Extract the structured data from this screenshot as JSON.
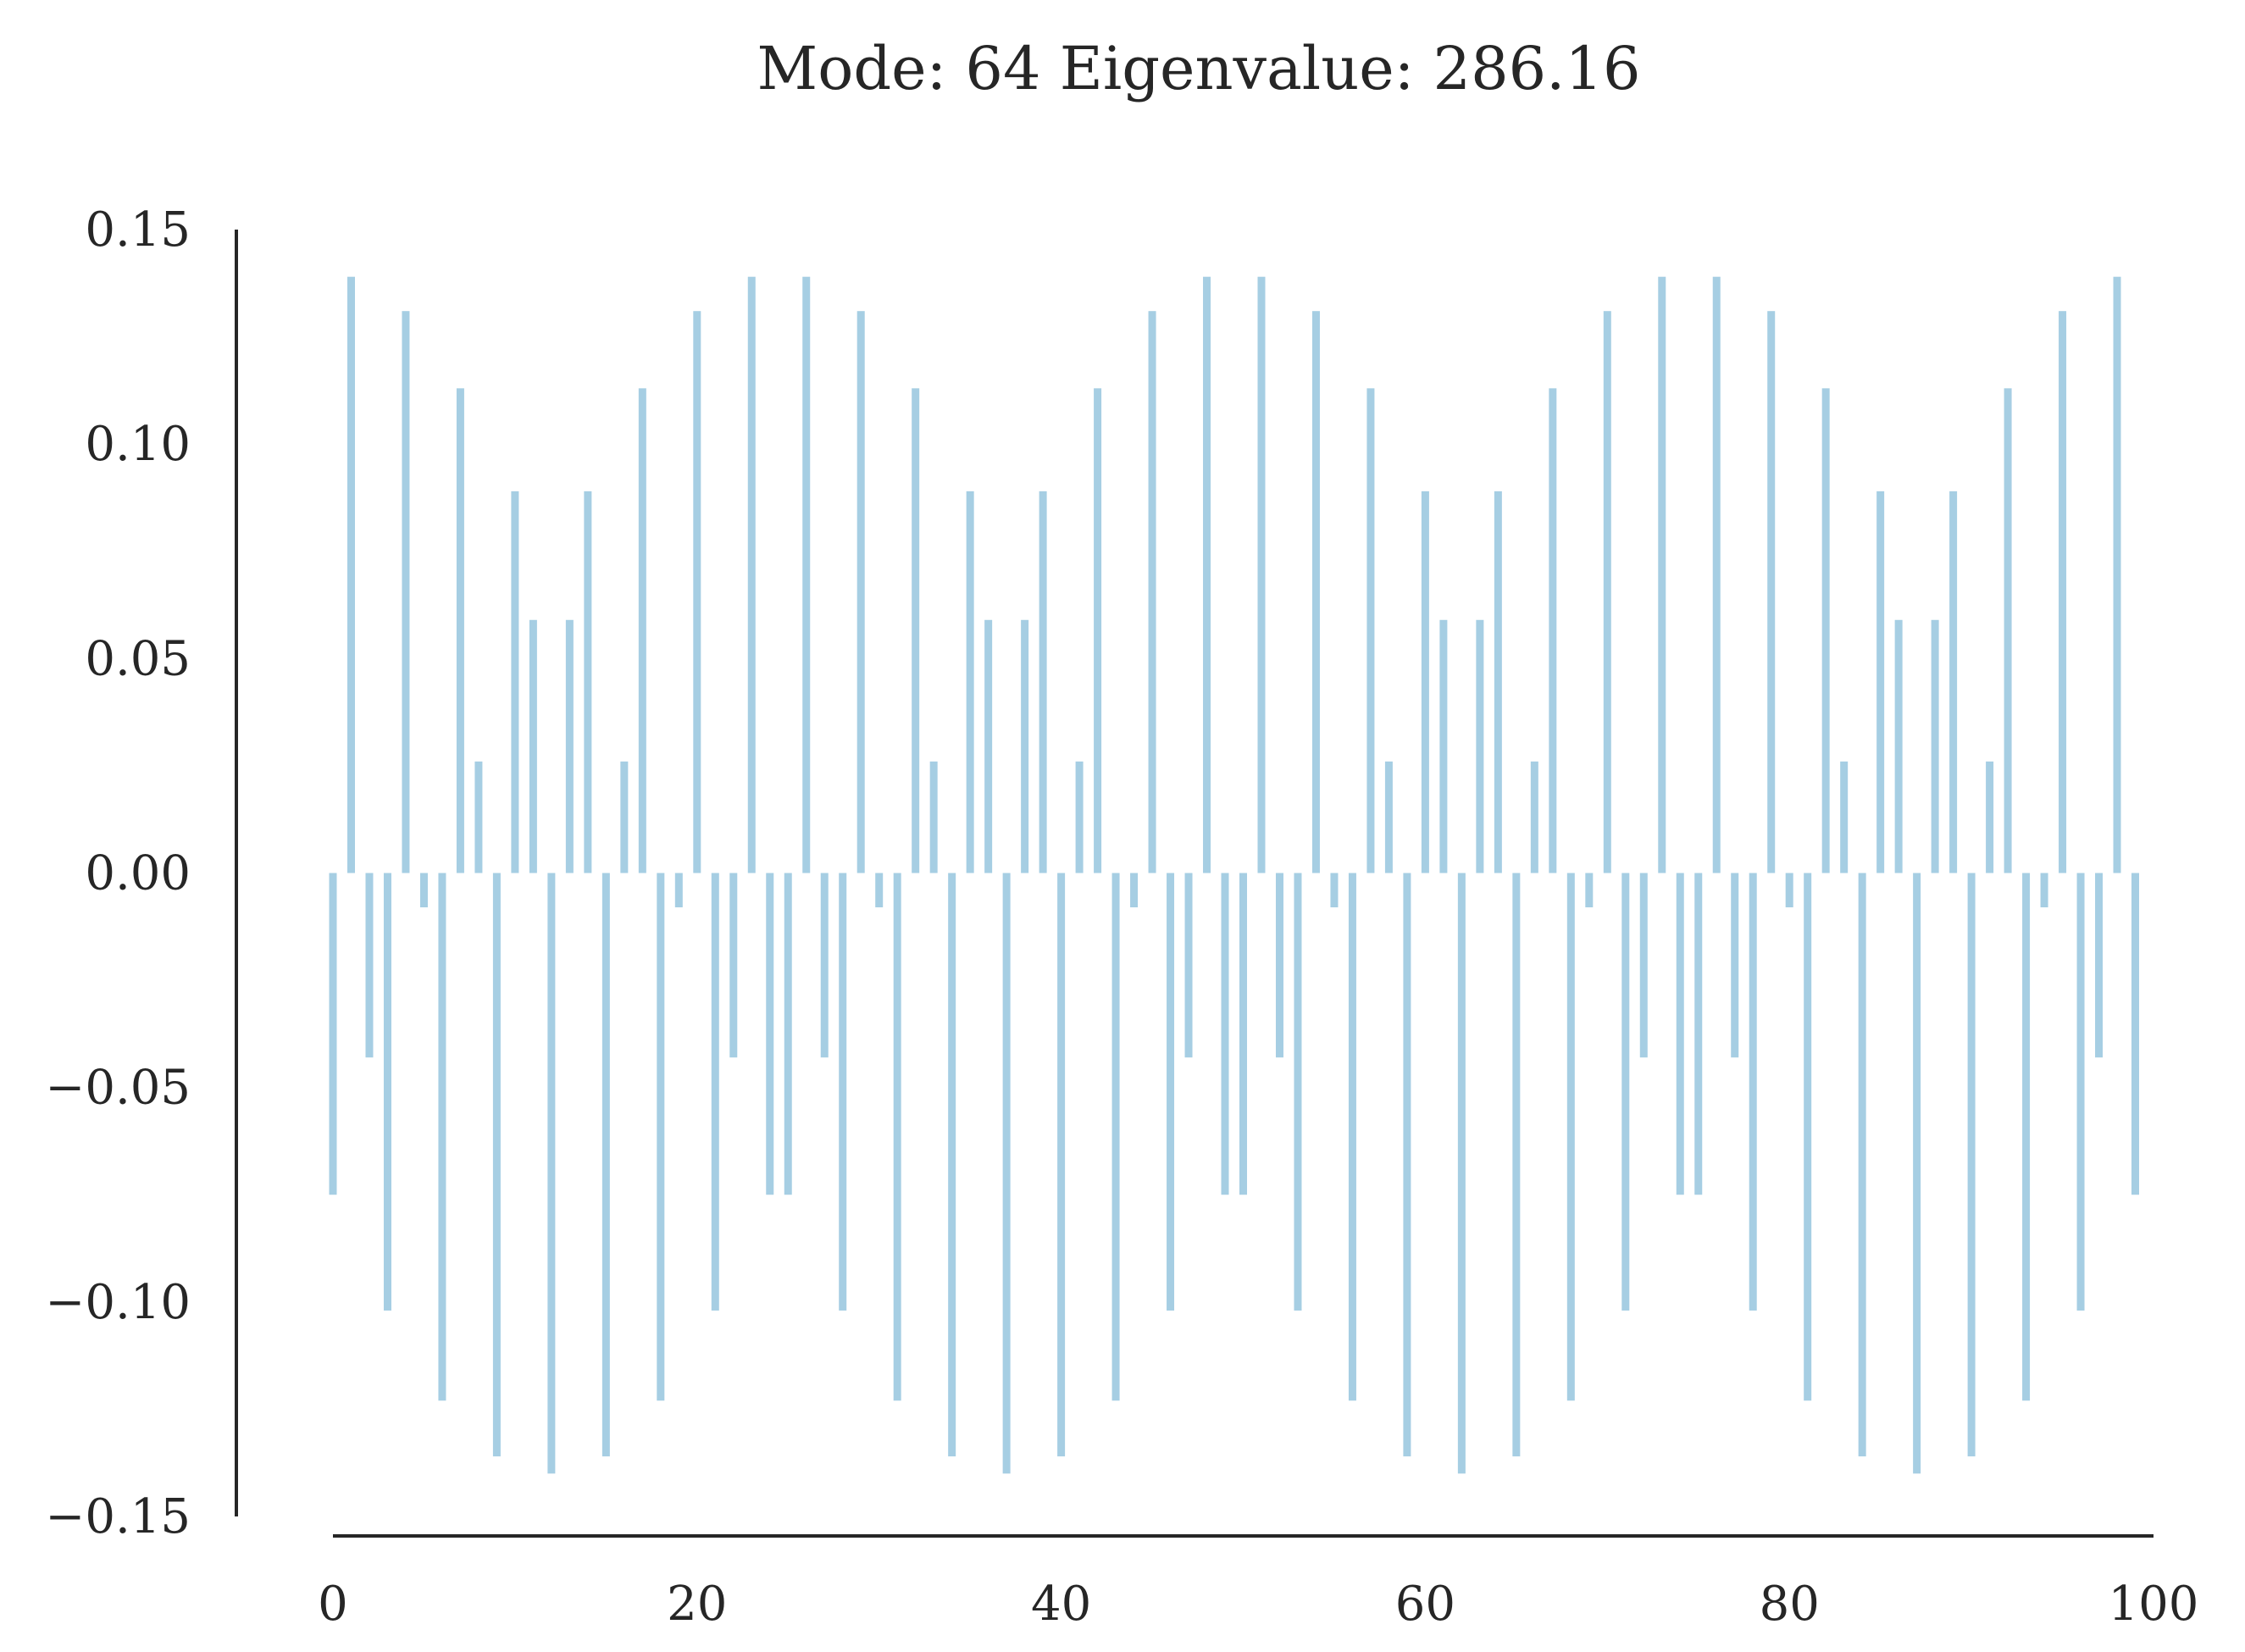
{
  "chart_data": {
    "type": "bar",
    "title": "Mode: 64 Eigenvalue: 286.16",
    "xlabel": "",
    "ylabel": "",
    "xlim": [
      0,
      100
    ],
    "ylim": [
      -0.15,
      0.15
    ],
    "x_ticks": [
      0,
      20,
      40,
      60,
      80,
      100
    ],
    "x_tick_labels": [
      "0",
      "20",
      "40",
      "60",
      "80",
      "100"
    ],
    "y_ticks": [
      0.15,
      0.1,
      0.05,
      0.0,
      -0.05,
      -0.1,
      -0.15
    ],
    "y_tick_labels": [
      "0.15",
      "0.10",
      "0.05",
      "0.00",
      "−0.05",
      "−0.10",
      "−0.15"
    ],
    "bar_color": "#a6cee3",
    "grid": false,
    "legend": "none",
    "x": [
      0,
      1,
      2,
      3,
      4,
      5,
      6,
      7,
      8,
      9,
      10,
      11,
      12,
      13,
      14,
      15,
      16,
      17,
      18,
      19,
      20,
      21,
      22,
      23,
      24,
      25,
      26,
      27,
      28,
      29,
      30,
      31,
      32,
      33,
      34,
      35,
      36,
      37,
      38,
      39,
      40,
      41,
      42,
      43,
      44,
      45,
      46,
      47,
      48,
      49,
      50,
      51,
      52,
      53,
      54,
      55,
      56,
      57,
      58,
      59,
      60,
      61,
      62,
      63,
      64,
      65,
      66,
      67,
      68,
      69,
      70,
      71,
      72,
      73,
      74,
      75,
      76,
      77,
      78,
      79,
      80,
      81,
      82,
      83,
      84,
      85,
      86,
      87,
      88,
      89,
      90,
      91,
      92,
      93,
      94,
      95,
      96,
      97,
      98,
      99
    ],
    "values": [
      -0.075,
      0.139,
      -0.043,
      -0.102,
      0.131,
      -0.008,
      -0.123,
      0.113,
      0.026,
      -0.136,
      0.089,
      0.059,
      -0.14,
      0.059,
      0.089,
      -0.136,
      0.026,
      0.113,
      -0.123,
      -0.008,
      0.131,
      -0.102,
      -0.043,
      0.139,
      -0.075,
      -0.075,
      0.139,
      -0.043,
      -0.102,
      0.131,
      -0.008,
      -0.123,
      0.113,
      0.026,
      -0.136,
      0.089,
      0.059,
      -0.14,
      0.059,
      0.089,
      -0.136,
      0.026,
      0.113,
      -0.123,
      -0.008,
      0.131,
      -0.102,
      -0.043,
      0.139,
      -0.075,
      -0.075,
      0.139,
      -0.043,
      -0.102,
      0.131,
      -0.008,
      -0.123,
      0.113,
      0.026,
      -0.136,
      0.089,
      0.059,
      -0.14,
      0.059,
      0.089,
      -0.136,
      0.026,
      0.113,
      -0.123,
      -0.008,
      0.131,
      -0.102,
      -0.043,
      0.139,
      -0.075,
      -0.075,
      0.139,
      -0.043,
      -0.102,
      0.131,
      -0.008,
      -0.123,
      0.113,
      0.026,
      -0.136,
      0.089,
      0.059,
      -0.14,
      0.059,
      0.089,
      -0.136,
      0.026,
      0.113,
      -0.123,
      -0.008,
      0.131,
      -0.102,
      -0.043,
      0.139,
      -0.075
    ]
  }
}
